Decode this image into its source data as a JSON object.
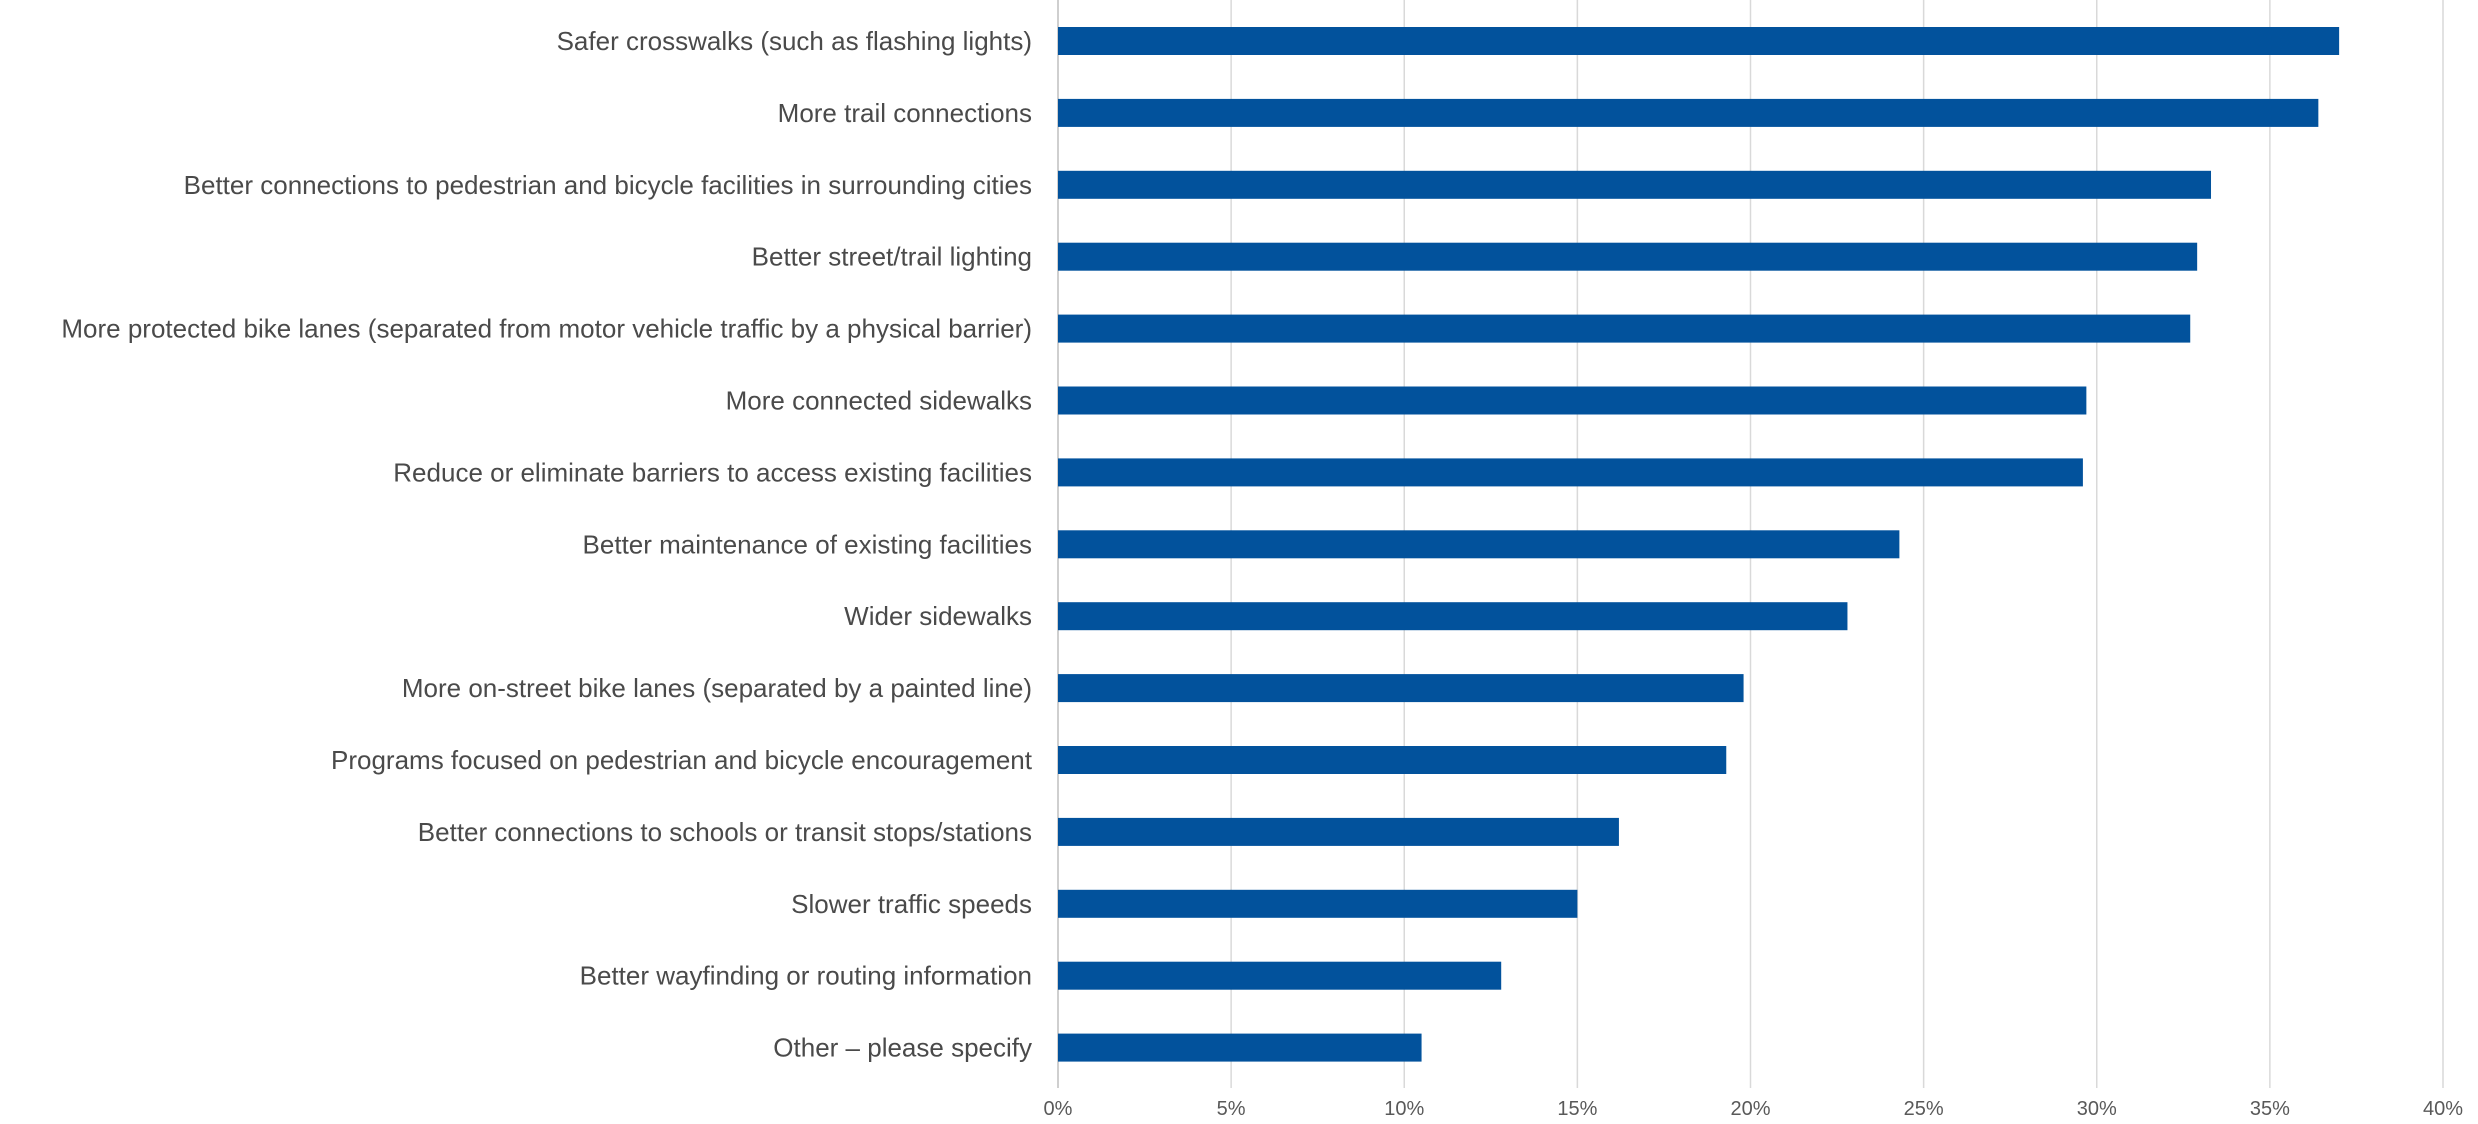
{
  "chart_data": {
    "type": "bar",
    "orientation": "horizontal",
    "title": "",
    "xlabel": "",
    "ylabel": "",
    "categories": [
      "Safer crosswalks (such as flashing lights)",
      "More trail connections",
      "Better connections to pedestrian and bicycle facilities in surrounding cities",
      "Better street/trail lighting",
      "More protected bike lanes (separated from motor vehicle traffic by a physical barrier)",
      "More connected sidewalks",
      "Reduce or eliminate barriers to access existing facilities",
      "Better maintenance of existing facilities",
      "Wider sidewalks",
      "More on-street bike lanes (separated by a painted line)",
      "Programs focused on pedestrian and bicycle encouragement",
      "Better connections to schools or transit stops/stations",
      "Slower traffic speeds",
      "Better wayfinding or routing information",
      "Other – please specify"
    ],
    "values": [
      37.0,
      36.4,
      33.3,
      32.9,
      32.7,
      29.7,
      29.6,
      24.3,
      22.8,
      19.8,
      19.3,
      16.2,
      15.0,
      12.8,
      10.5
    ],
    "xlim": [
      0,
      40
    ],
    "ticks": [
      0,
      5,
      10,
      15,
      20,
      25,
      30,
      35,
      40
    ],
    "tick_labels": [
      "0%",
      "5%",
      "10%",
      "15%",
      "20%",
      "25%",
      "30%",
      "35%",
      "40%"
    ],
    "grid": true,
    "legend": "none",
    "bar_color": "#02529c"
  }
}
